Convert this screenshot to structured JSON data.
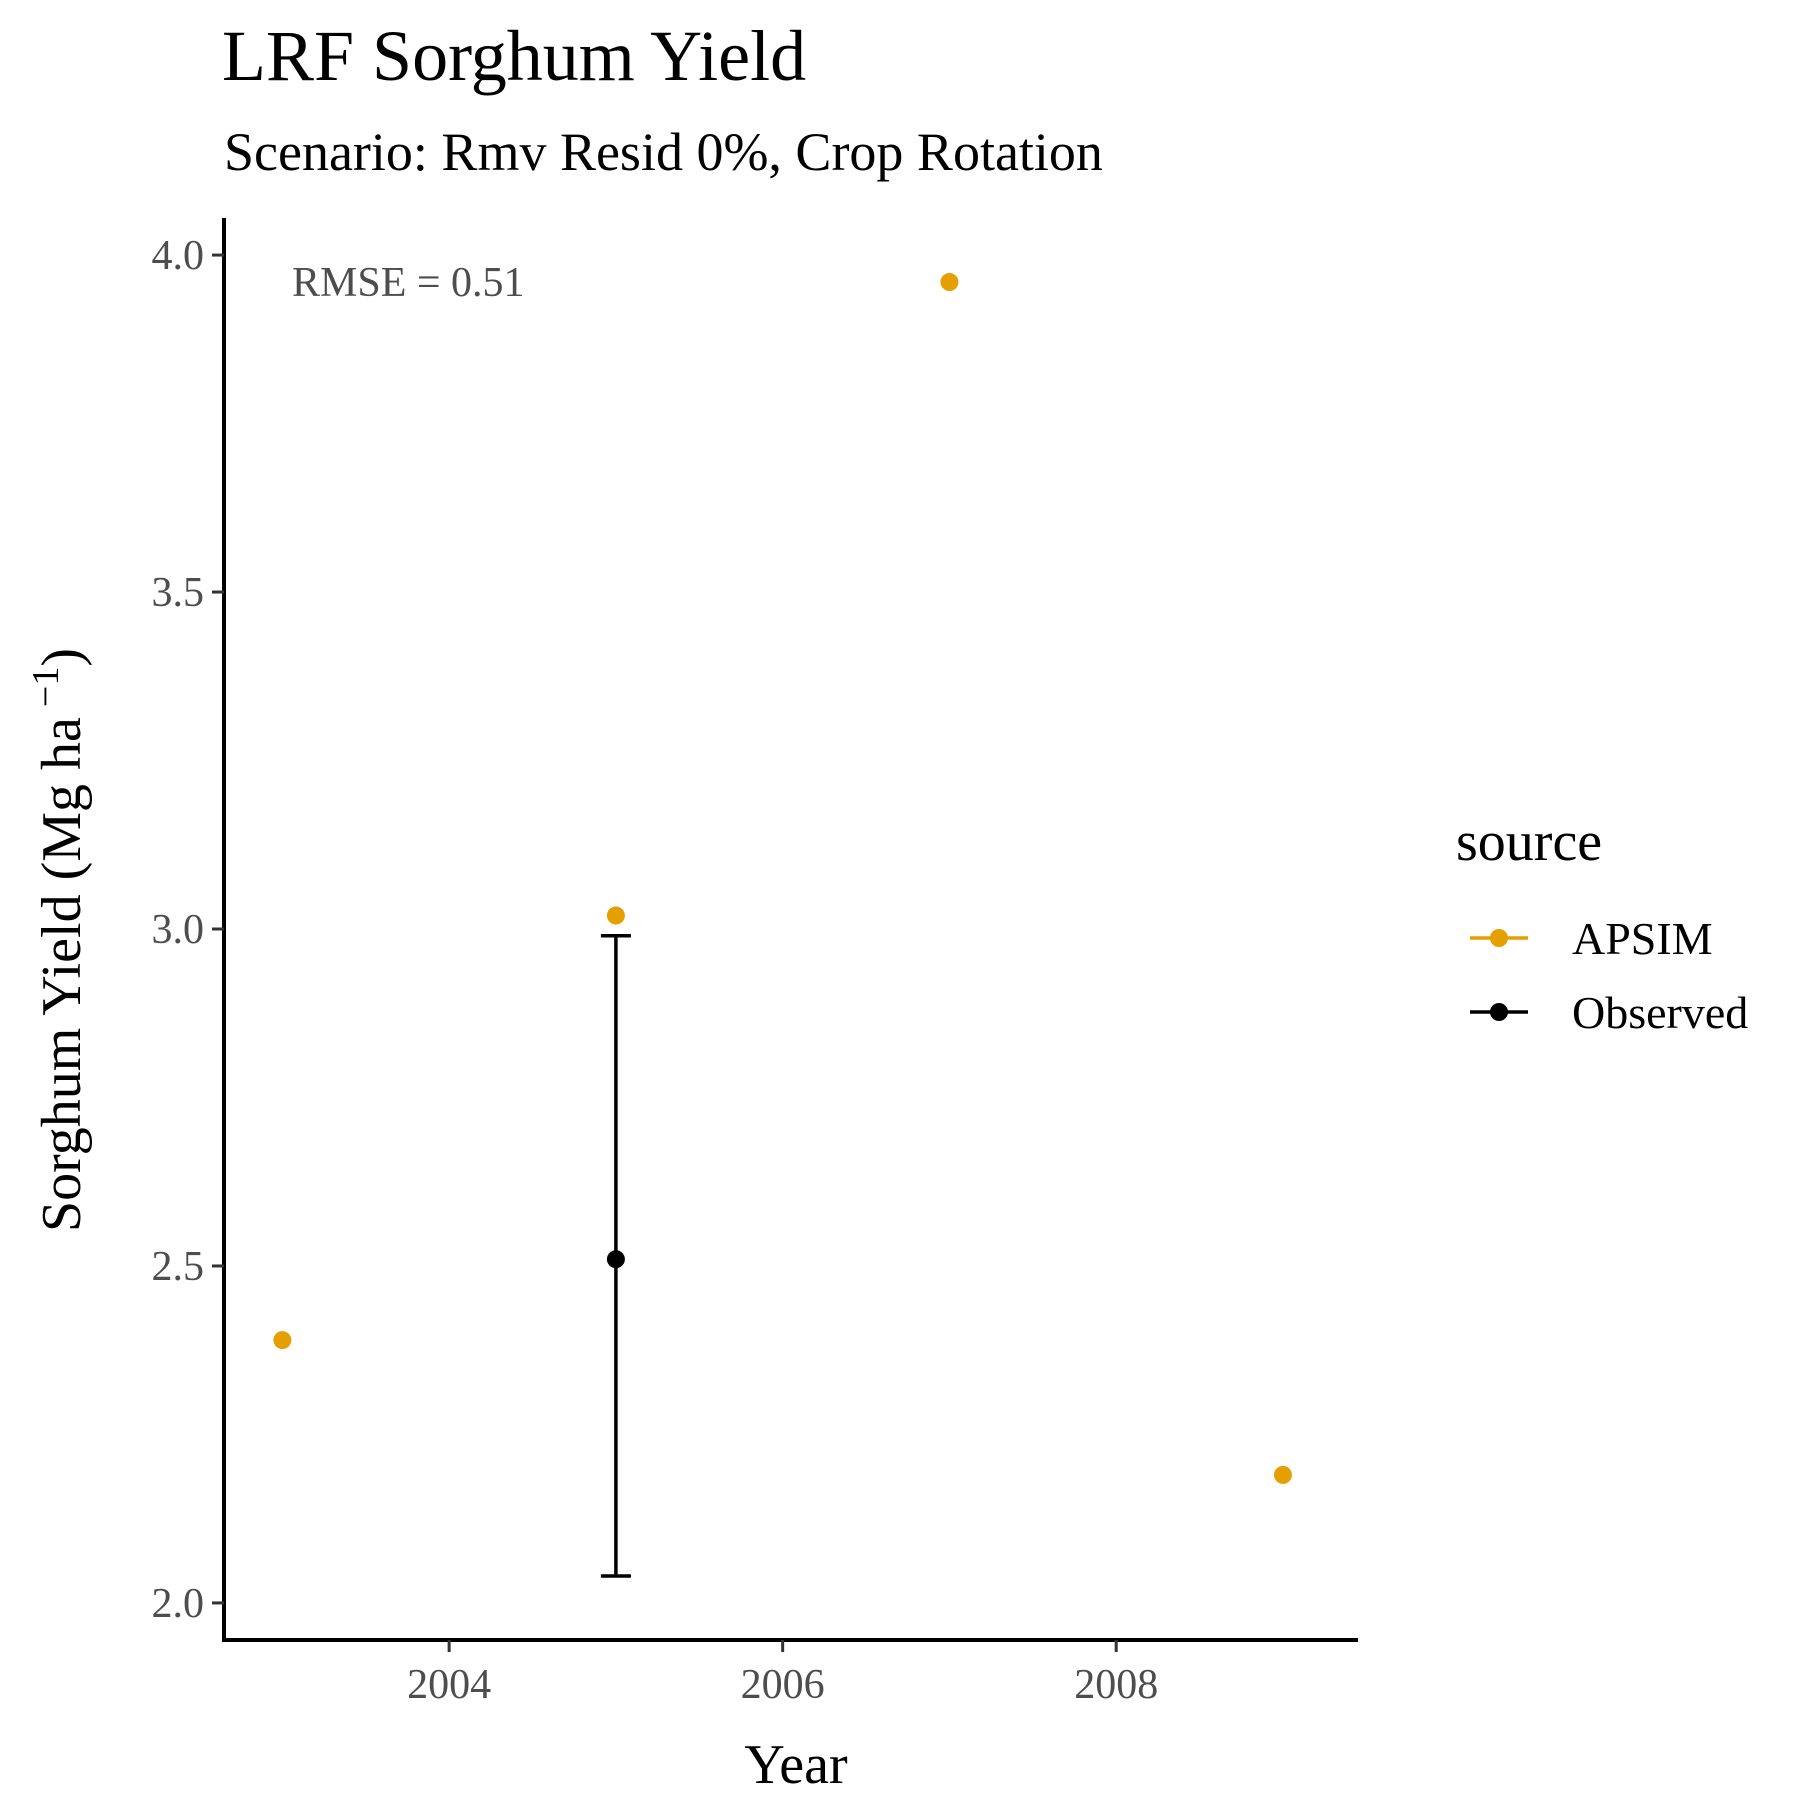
{
  "chart_data": {
    "type": "scatter",
    "title": "LRF Sorghum Yield",
    "subtitle": "Scenario: Rmv Resid 0%, Crop Rotation",
    "xlabel": "Year",
    "ylabel": "Sorghum Yield (Mg ha",
    "ylabel_sup": "−1",
    "ylabel_close": ")",
    "xlim": [
      2002.65,
      2009.45
    ],
    "ylim": [
      1.945,
      4.055
    ],
    "x_ticks": [
      2004,
      2006,
      2008
    ],
    "x_tick_labels": [
      "2004",
      "2006",
      "2008"
    ],
    "y_ticks": [
      2.0,
      2.5,
      3.0,
      3.5,
      4.0
    ],
    "y_tick_labels": [
      "2.0",
      "2.5",
      "3.0",
      "3.5",
      "4.0"
    ],
    "grid": false,
    "annotation": "RMSE = 0.51",
    "legend": {
      "title": "source",
      "position": "right"
    },
    "series": [
      {
        "name": "APSIM",
        "color": "#E69F00",
        "x": [
          2003,
          2005,
          2007,
          2009
        ],
        "y": [
          2.39,
          3.02,
          3.96,
          2.19
        ]
      },
      {
        "name": "Observed",
        "color": "#000000",
        "x": [
          2005
        ],
        "y": [
          2.51
        ],
        "error_low": [
          2.04
        ],
        "error_high": [
          2.99
        ]
      }
    ]
  }
}
